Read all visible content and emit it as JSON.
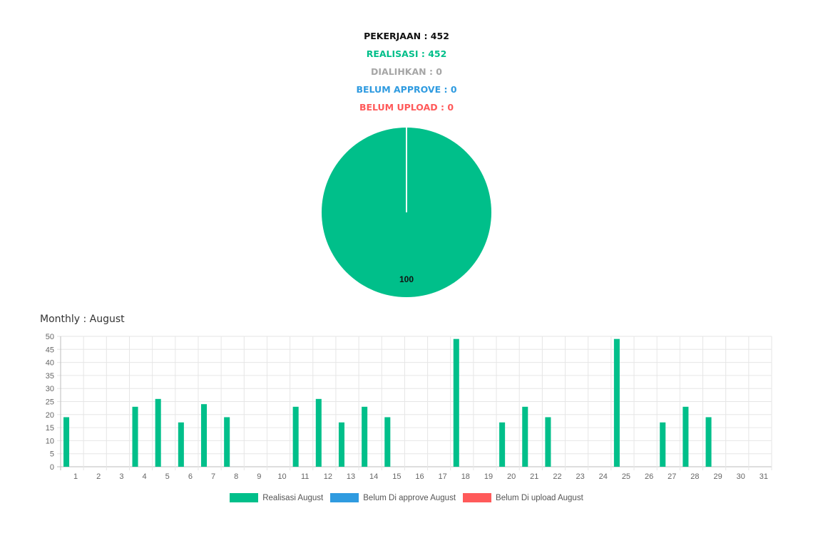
{
  "summary": {
    "pekerjaan": "PEKERJAAN : 452",
    "realisasi": "REALISASI : 452",
    "dialihkan": "DIALIHKAN : 0",
    "belum_approve": "BELUM APPROVE : 0",
    "belum_upload": "BELUM UPLOAD : 0"
  },
  "colors": {
    "realisasi": "#00bf8a",
    "dialihkan": "#a6a6a6",
    "belum_approve": "#2f9be0",
    "belum_upload": "#ff5a5a",
    "text": "#111111"
  },
  "chart_data": [
    {
      "type": "pie",
      "slices": [
        {
          "value": 100,
          "color": "#00bf8a"
        }
      ],
      "data_labels": [
        "100"
      ]
    },
    {
      "type": "bar",
      "title": "Monthly : August",
      "categories": [
        "1",
        "2",
        "3",
        "4",
        "5",
        "6",
        "7",
        "8",
        "9",
        "10",
        "11",
        "12",
        "13",
        "14",
        "15",
        "16",
        "17",
        "18",
        "19",
        "20",
        "21",
        "22",
        "23",
        "24",
        "25",
        "26",
        "27",
        "28",
        "29",
        "30",
        "31"
      ],
      "series": [
        {
          "name": "Realisasi August",
          "color": "#00bf8a",
          "values": [
            19,
            0,
            0,
            23,
            26,
            17,
            24,
            19,
            0,
            0,
            23,
            26,
            17,
            23,
            19,
            0,
            0,
            49,
            0,
            17,
            23,
            19,
            0,
            0,
            49,
            0,
            17,
            23,
            19,
            0,
            0
          ]
        },
        {
          "name": "Belum Di approve August",
          "color": "#2f9be0",
          "values": [
            0,
            0,
            0,
            0,
            0,
            0,
            0,
            0,
            0,
            0,
            0,
            0,
            0,
            0,
            0,
            0,
            0,
            0,
            0,
            0,
            0,
            0,
            0,
            0,
            0,
            0,
            0,
            0,
            0,
            0,
            0
          ]
        },
        {
          "name": "Belum Di upload August",
          "color": "#ff5a5a",
          "values": [
            0,
            0,
            0,
            0,
            0,
            0,
            0,
            0,
            0,
            0,
            0,
            0,
            0,
            0,
            0,
            0,
            0,
            0,
            0,
            0,
            0,
            0,
            0,
            0,
            0,
            0,
            0,
            0,
            0,
            0,
            0
          ]
        }
      ],
      "ylim": [
        0,
        50
      ],
      "yticks": [
        0,
        5,
        10,
        15,
        20,
        25,
        30,
        35,
        40,
        45,
        50
      ],
      "grid": true,
      "legend_position": "bottom"
    }
  ]
}
